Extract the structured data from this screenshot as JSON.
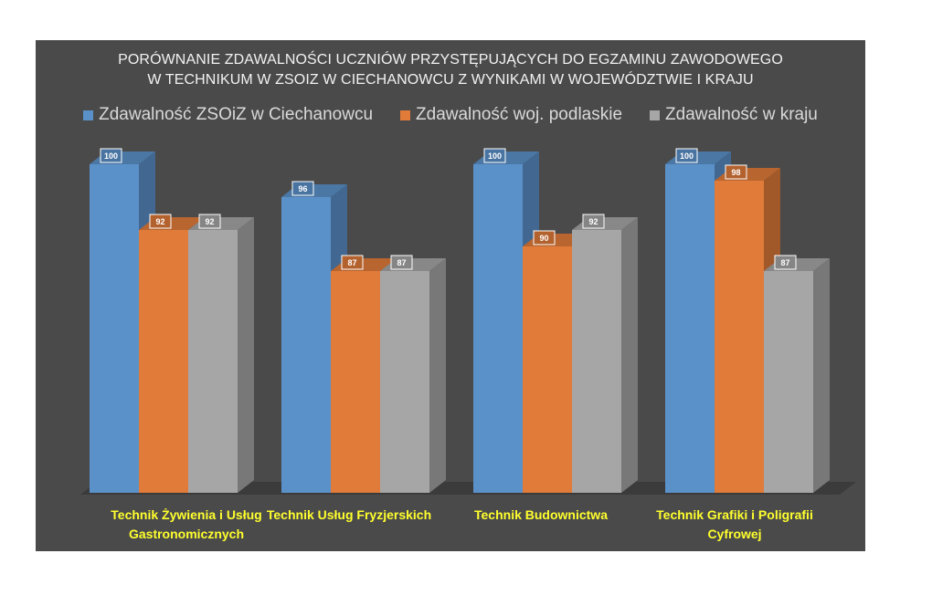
{
  "chart_data": {
    "type": "bar",
    "title_lines": [
      "PORÓWNANIE ZDAWALNOŚCI UCZNIÓW PRZYSTĘPUJĄCYCH DO EGZAMINU ZAWODOWEGO",
      "W TECHNIKUM W ZSOIZ W CIECHANOWCU Z WYNIKAMI W WOJEWÓDZTWIE I KRAJU"
    ],
    "categories": [
      "Technik Żywienia i Usług Gastronomicznych",
      "Technik Usług Fryzjerskich",
      "Technik Budownictwa",
      "Technik Grafiki i Poligrafii Cyfrowej"
    ],
    "series": [
      {
        "name": "Zdawalność ZSOiZ  w Ciechanowcu",
        "color": "#5b91c9",
        "values": [
          100,
          96,
          100,
          100
        ]
      },
      {
        "name": "Zdawalność woj. podlaskie",
        "color": "#e07b39",
        "values": [
          92,
          87,
          90,
          98
        ]
      },
      {
        "name": "Zdawalność w kraju",
        "color": "#a6a6a6",
        "values": [
          92,
          87,
          92,
          87
        ]
      }
    ],
    "ylim": [
      60,
      100
    ],
    "grid": false,
    "legend_position": "top",
    "data_labels": true,
    "style": "3d-clustered-column",
    "label_color": "#ffff2e",
    "background": "#4a4a4a"
  }
}
